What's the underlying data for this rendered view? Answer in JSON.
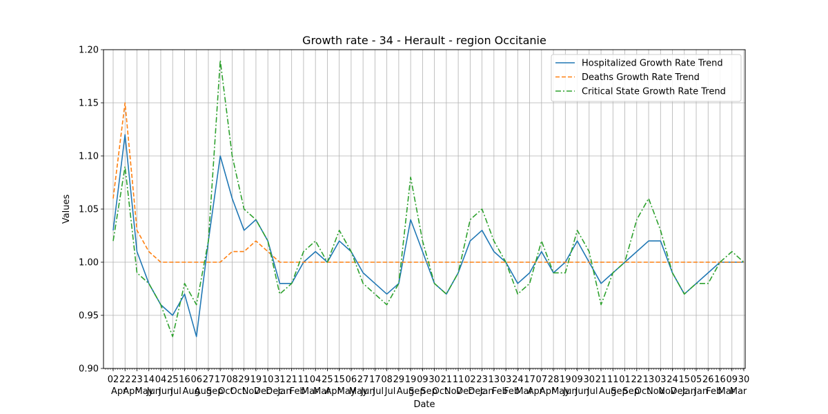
{
  "chart_data": {
    "type": "line",
    "title": "Growth rate - 34 - Herault - region Occitanie",
    "xlabel": "Date",
    "ylabel": "Values",
    "ylim": [
      0.9,
      1.2
    ],
    "yticks": [
      "0.90",
      "0.95",
      "1.00",
      "1.05",
      "1.10",
      "1.15",
      "1.20"
    ],
    "grid": true,
    "legend_position": "top-right",
    "x_ticks": [
      {
        "day": "02",
        "month": "Apr"
      },
      {
        "day": "22",
        "month": "Apr"
      },
      {
        "day": "23",
        "month": "May"
      },
      {
        "day": "14",
        "month": "Jun"
      },
      {
        "day": "04",
        "month": "Jun"
      },
      {
        "day": "25",
        "month": "Jul"
      },
      {
        "day": "16",
        "month": "Aug"
      },
      {
        "day": "06",
        "month": "Aug"
      },
      {
        "day": "27",
        "month": "Sep"
      },
      {
        "day": "17",
        "month": "Oct"
      },
      {
        "day": "08",
        "month": "Oct"
      },
      {
        "day": "29",
        "month": "Nov"
      },
      {
        "day": "19",
        "month": "Dec"
      },
      {
        "day": "10",
        "month": "Dec"
      },
      {
        "day": "31",
        "month": "Jan"
      },
      {
        "day": "21",
        "month": "Feb"
      },
      {
        "day": "11",
        "month": "Mar"
      },
      {
        "day": "04",
        "month": "Mar"
      },
      {
        "day": "25",
        "month": "Apr"
      },
      {
        "day": "15",
        "month": "May"
      },
      {
        "day": "06",
        "month": "May"
      },
      {
        "day": "27",
        "month": "Jun"
      },
      {
        "day": "17",
        "month": "Jul"
      },
      {
        "day": "08",
        "month": "Jul"
      },
      {
        "day": "29",
        "month": "Aug"
      },
      {
        "day": "19",
        "month": "Sep"
      },
      {
        "day": "09",
        "month": "Sep"
      },
      {
        "day": "30",
        "month": "Oct"
      },
      {
        "day": "21",
        "month": "Nov"
      },
      {
        "day": "11",
        "month": "Dec"
      },
      {
        "day": "02",
        "month": "Dec"
      },
      {
        "day": "23",
        "month": "Jan"
      },
      {
        "day": "13",
        "month": "Feb"
      },
      {
        "day": "03",
        "month": "Feb"
      },
      {
        "day": "24",
        "month": "Mar"
      },
      {
        "day": "17",
        "month": "Apr"
      },
      {
        "day": "07",
        "month": "Apr"
      },
      {
        "day": "28",
        "month": "May"
      },
      {
        "day": "19",
        "month": "Jun"
      },
      {
        "day": "09",
        "month": "Jun"
      },
      {
        "day": "30",
        "month": "Jul"
      },
      {
        "day": "21",
        "month": "Aug"
      },
      {
        "day": "11",
        "month": "Sep"
      },
      {
        "day": "01",
        "month": "Sep"
      },
      {
        "day": "22",
        "month": "Oct"
      },
      {
        "day": "13",
        "month": "Nov"
      },
      {
        "day": "03",
        "month": "Nov"
      },
      {
        "day": "24",
        "month": "Dec"
      },
      {
        "day": "15",
        "month": "Jan"
      },
      {
        "day": "05",
        "month": "Jan"
      },
      {
        "day": "26",
        "month": "Feb"
      },
      {
        "day": "16",
        "month": "Mar"
      },
      {
        "day": "09",
        "month": "Mar"
      },
      {
        "day": "30",
        "month": ""
      }
    ],
    "series": [
      {
        "name": "Hospitalized Growth Rate Trend",
        "color": "#1f77b4",
        "dash": "solid",
        "x": [
          0,
          1,
          2,
          3,
          4,
          5,
          6,
          7,
          8,
          9,
          10,
          11,
          12,
          13,
          14,
          15,
          16,
          17,
          18,
          19,
          20,
          21,
          22,
          23,
          24,
          25,
          26,
          27,
          28,
          29,
          30,
          31,
          32,
          33,
          34,
          35,
          36,
          37,
          38,
          39,
          40,
          41,
          42,
          43,
          44,
          45,
          46,
          47,
          48,
          49,
          50,
          51,
          52,
          53
        ],
        "values": [
          1.03,
          1.12,
          1.01,
          0.98,
          0.96,
          0.95,
          0.97,
          0.93,
          1.02,
          1.1,
          1.06,
          1.03,
          1.04,
          1.02,
          0.98,
          0.98,
          1.0,
          1.01,
          1.0,
          1.02,
          1.01,
          0.99,
          0.98,
          0.97,
          0.98,
          1.04,
          1.01,
          0.98,
          0.97,
          0.99,
          1.02,
          1.03,
          1.01,
          1.0,
          0.98,
          0.99,
          1.01,
          0.99,
          1.0,
          1.02,
          1.0,
          0.98,
          0.99,
          1.0,
          1.01,
          1.02,
          1.02,
          0.99,
          0.97,
          0.98,
          0.99,
          1.0,
          1.0,
          1.0
        ]
      },
      {
        "name": "Deaths Growth Rate Trend",
        "color": "#ff7f0e",
        "dash": "dashed",
        "x": [
          0,
          1,
          2,
          3,
          4,
          5,
          6,
          7,
          8,
          9,
          10,
          11,
          12,
          13,
          14,
          15,
          16,
          17,
          18,
          19,
          20,
          21,
          22,
          23,
          24,
          25,
          26,
          27,
          28,
          29,
          30,
          31,
          32,
          33,
          34,
          35,
          36,
          37,
          38,
          39,
          40,
          41,
          42,
          43,
          44,
          45,
          46,
          47,
          48,
          49,
          50,
          51,
          52,
          53
        ],
        "values": [
          1.06,
          1.15,
          1.03,
          1.01,
          1.0,
          1.0,
          1.0,
          1.0,
          1.0,
          1.0,
          1.01,
          1.01,
          1.02,
          1.01,
          1.0,
          1.0,
          1.0,
          1.0,
          1.0,
          1.0,
          1.0,
          1.0,
          1.0,
          1.0,
          1.0,
          1.0,
          1.0,
          1.0,
          1.0,
          1.0,
          1.0,
          1.0,
          1.0,
          1.0,
          1.0,
          1.0,
          1.0,
          1.0,
          1.0,
          1.0,
          1.0,
          1.0,
          1.0,
          1.0,
          1.0,
          1.0,
          1.0,
          1.0,
          1.0,
          1.0,
          1.0,
          1.0,
          1.0,
          1.0
        ]
      },
      {
        "name": "Critical State Growth Rate Trend",
        "color": "#2ca02c",
        "dash": "dashdot",
        "x": [
          0,
          1,
          2,
          3,
          4,
          5,
          6,
          7,
          8,
          9,
          10,
          11,
          12,
          13,
          14,
          15,
          16,
          17,
          18,
          19,
          20,
          21,
          22,
          23,
          24,
          25,
          26,
          27,
          28,
          29,
          30,
          31,
          32,
          33,
          34,
          35,
          36,
          37,
          38,
          39,
          40,
          41,
          42,
          43,
          44,
          45,
          46,
          47,
          48,
          49,
          50,
          51,
          52,
          53
        ],
        "values": [
          1.02,
          1.09,
          0.99,
          0.98,
          0.96,
          0.93,
          0.98,
          0.96,
          1.02,
          1.19,
          1.1,
          1.05,
          1.04,
          1.02,
          0.97,
          0.98,
          1.01,
          1.02,
          1.0,
          1.03,
          1.01,
          0.98,
          0.97,
          0.96,
          0.98,
          1.08,
          1.02,
          0.98,
          0.97,
          0.99,
          1.04,
          1.05,
          1.02,
          1.0,
          0.97,
          0.98,
          1.02,
          0.99,
          0.99,
          1.03,
          1.01,
          0.96,
          0.99,
          1.0,
          1.04,
          1.06,
          1.03,
          0.99,
          0.97,
          0.98,
          0.98,
          1.0,
          1.01,
          1.0
        ]
      }
    ]
  }
}
